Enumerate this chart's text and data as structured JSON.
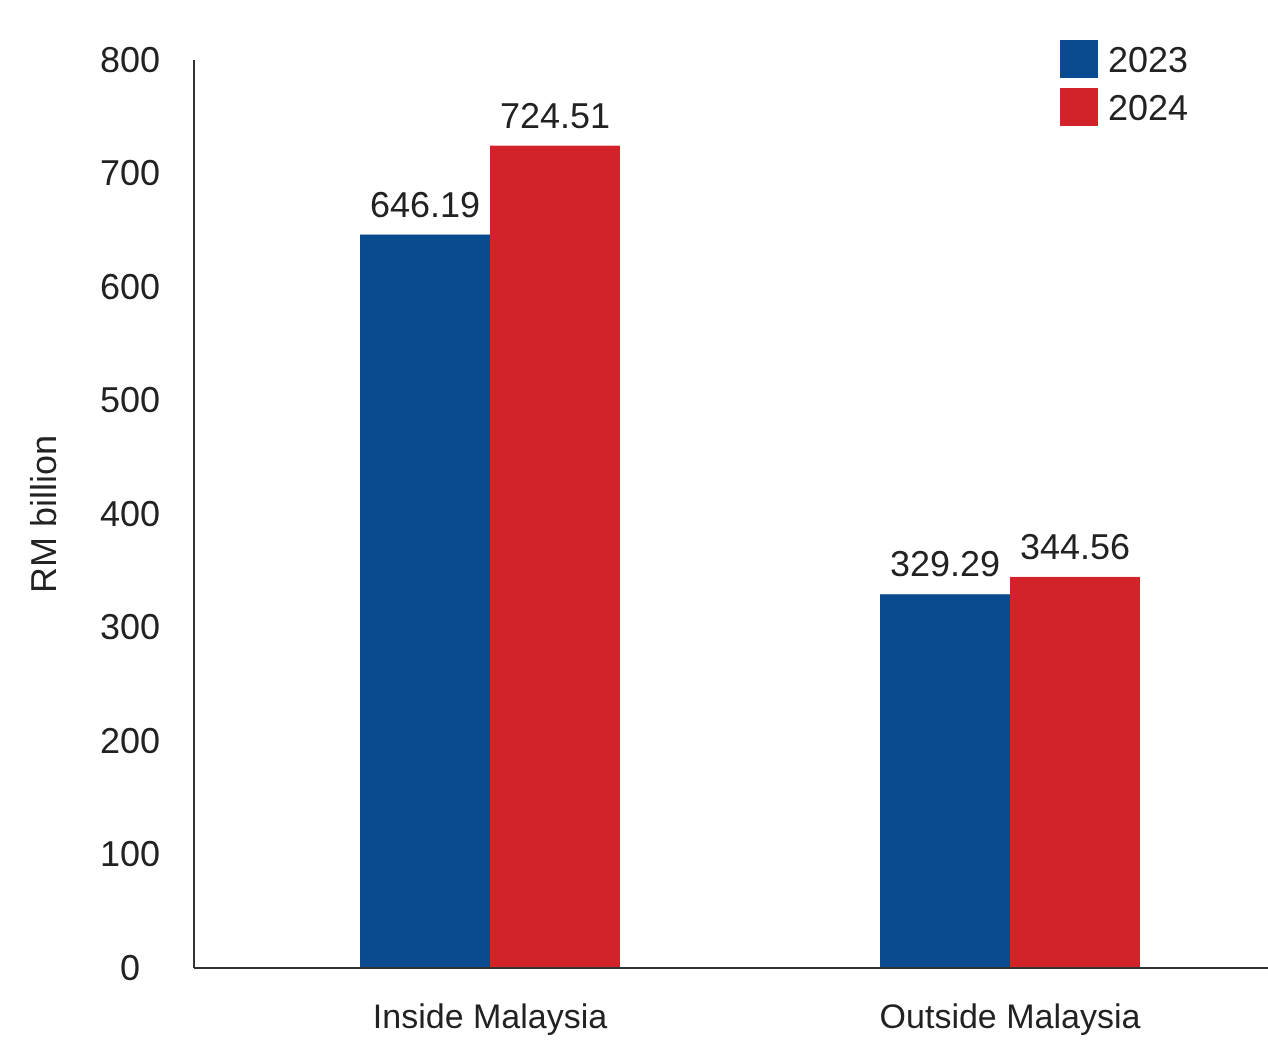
{
  "chart_data": {
    "type": "bar",
    "ylabel": "RM billion",
    "categories": [
      "Inside Malaysia",
      "Outside Malaysia"
    ],
    "series": [
      {
        "name": "2023",
        "color": "#0a4a8f",
        "values": [
          646.19,
          329.29
        ]
      },
      {
        "name": "2024",
        "color": "#d2232a",
        "values": [
          724.51,
          344.56
        ]
      }
    ],
    "ylim": [
      0,
      800
    ],
    "yticks": [
      0,
      100,
      200,
      300,
      400,
      500,
      600,
      700,
      800
    ],
    "grid": false,
    "legend": "top right",
    "data_labels": true
  }
}
